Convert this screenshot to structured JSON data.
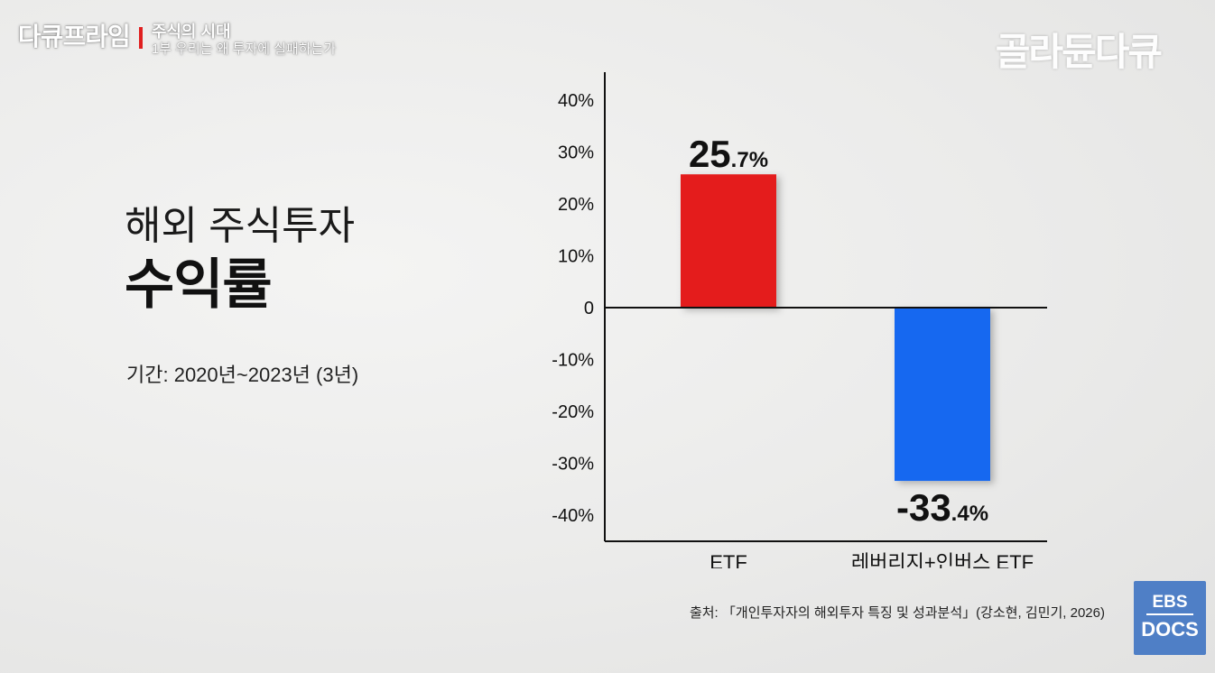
{
  "brand": {
    "name": "다큐프라임",
    "series": "주식의 시대",
    "episode": "1부 우리는 왜 투자에 실패하는가"
  },
  "corner_logo": "골라듄다큐",
  "headline": {
    "line1": "해외 주식투자",
    "line2": "수익률"
  },
  "period": "기간: 2020년~2023년 (3년)",
  "source": "출처: 「개인투자자의 해외투자 특징 및 성과분석」(강소현, 김민기, 2026)",
  "ebs_badge": {
    "top": "EBS",
    "bottom": "DOCS"
  },
  "colors": {
    "etf_bar": "#e41f1f",
    "leverage_bar": "#1668f0",
    "axis": "#111111"
  },
  "chart_data": {
    "type": "bar",
    "categories": [
      "ETF",
      "레버리지+인버스 ETF"
    ],
    "values": [
      25.7,
      -33.4
    ],
    "value_labels": [
      {
        "main": "25",
        "small": ".7%"
      },
      {
        "main": "-33",
        "small": ".4%"
      }
    ],
    "y_ticks": [
      "40%",
      "30%",
      "20%",
      "10%",
      "0",
      "-10%",
      "-20%",
      "-30%",
      "-40%"
    ],
    "y_tick_values": [
      40,
      30,
      20,
      10,
      0,
      -10,
      -20,
      -30,
      -40
    ],
    "ylim": [
      -45,
      45
    ],
    "grid": false,
    "legend": "none"
  }
}
